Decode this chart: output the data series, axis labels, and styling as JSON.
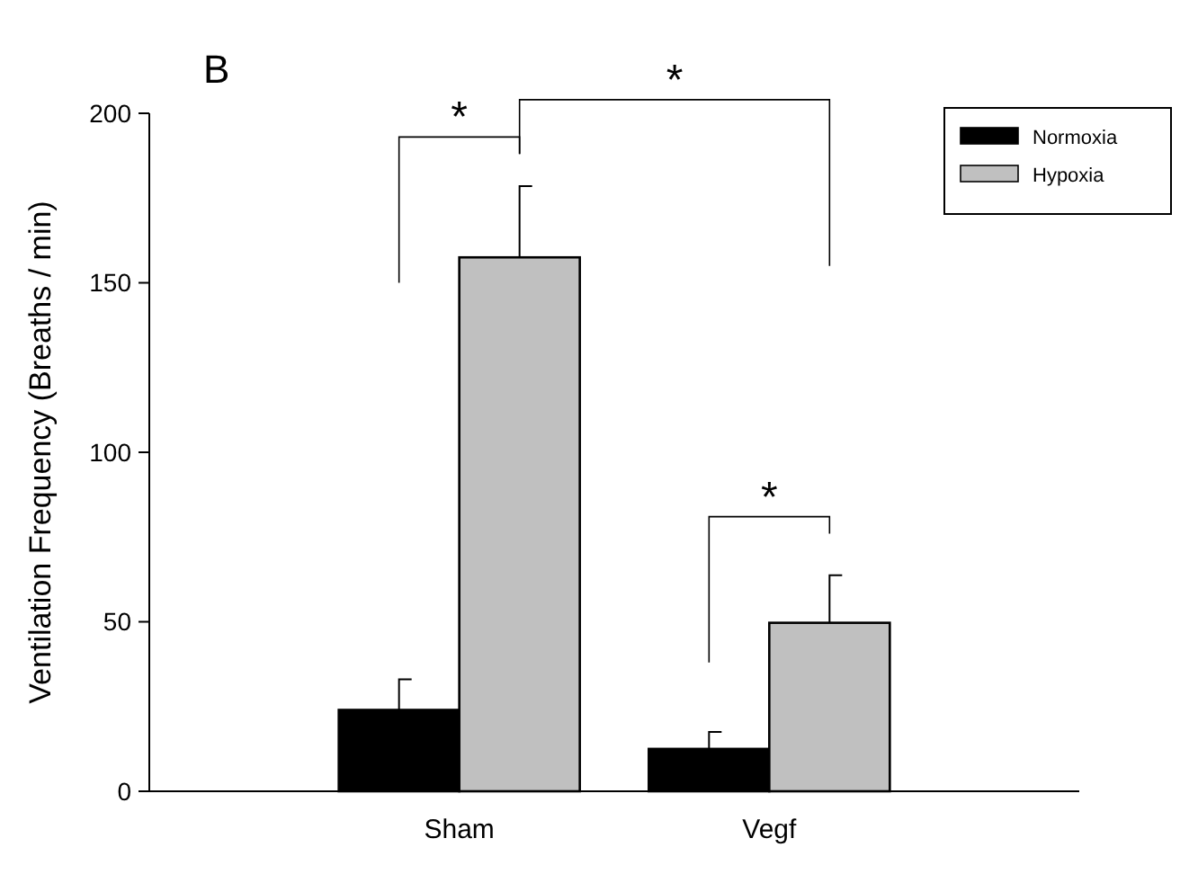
{
  "chart_data": {
    "type": "bar",
    "title": "B",
    "ylabel": "Ventilation Frequency (Breaths / min)",
    "categories": [
      "Sham",
      "Vegf"
    ],
    "series": [
      {
        "name": "Normoxia",
        "color": "#000000",
        "values": [
          24,
          12.5
        ],
        "errors": [
          9,
          5
        ]
      },
      {
        "name": "Hypoxia",
        "color": "#c0c0c0",
        "values": [
          157.5,
          49.7
        ],
        "errors": [
          21,
          14
        ]
      }
    ],
    "ylim": [
      0,
      200
    ],
    "yticks": [
      0,
      50,
      100,
      150,
      200
    ],
    "grid": false,
    "legend": "top right",
    "annotations": [
      "*",
      "*",
      "*"
    ]
  }
}
